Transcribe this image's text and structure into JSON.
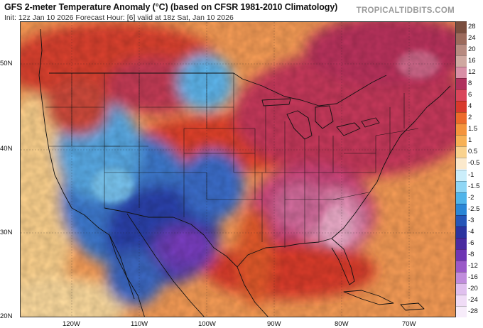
{
  "header": {
    "title": "GFS 2-meter Temperature Anomaly (°C) (based on CFSR 1981-2010 Climatology)",
    "subtitle": "Init: 12z Jan 10 2026   Forecast Hour: [6]   valid at 18z Sat, Jan 10 2026",
    "brand": "TROPICALTIDBITS.COM"
  },
  "map": {
    "lat_labels": [
      "50N",
      "40N",
      "30N",
      "20N"
    ],
    "lon_labels": [
      "120W",
      "110W",
      "100W",
      "90W",
      "80W",
      "70W"
    ]
  },
  "colorbar": {
    "levels": [
      {
        "label": "28",
        "color": "#7a4e3e"
      },
      {
        "label": "24",
        "color": "#9c6a5c"
      },
      {
        "label": "20",
        "color": "#b78a80"
      },
      {
        "label": "16",
        "color": "#cfa8a0"
      },
      {
        "label": "12",
        "color": "#d98fa6"
      },
      {
        "label": "8",
        "color": "#b0305c"
      },
      {
        "label": "6",
        "color": "#d9455a"
      },
      {
        "label": "4",
        "color": "#d8392c"
      },
      {
        "label": "2",
        "color": "#ec6a2a"
      },
      {
        "label": "1.5",
        "color": "#f4943c"
      },
      {
        "label": "1",
        "color": "#f7b155"
      },
      {
        "label": "0.5",
        "color": "#f9d28e"
      },
      {
        "label": "-0.5",
        "color": "#fbe9cc"
      },
      {
        "label": "-1",
        "color": "#cbeefb"
      },
      {
        "label": "-1.5",
        "color": "#8fd6f5"
      },
      {
        "label": "-2",
        "color": "#50b4ea"
      },
      {
        "label": "-2.5",
        "color": "#2b86d6"
      },
      {
        "label": "-3",
        "color": "#2656b8"
      },
      {
        "label": "-4",
        "color": "#2c34a0"
      },
      {
        "label": "-6",
        "color": "#4a2ba0"
      },
      {
        "label": "-8",
        "color": "#6e36b4"
      },
      {
        "label": "-12",
        "color": "#9a59c8"
      },
      {
        "label": "-16",
        "color": "#c08cdc"
      },
      {
        "label": "-20",
        "color": "#e0c0ee"
      },
      {
        "label": "-24",
        "color": "#f0dcf6"
      },
      {
        "label": "-28",
        "color": "#f7ecfa"
      }
    ]
  },
  "colors": {
    "ocean": "#f4a05a",
    "warm": "#dd3c2c",
    "hot": "#b8325c",
    "cold": "#2c4fb0",
    "border": "#111111"
  }
}
